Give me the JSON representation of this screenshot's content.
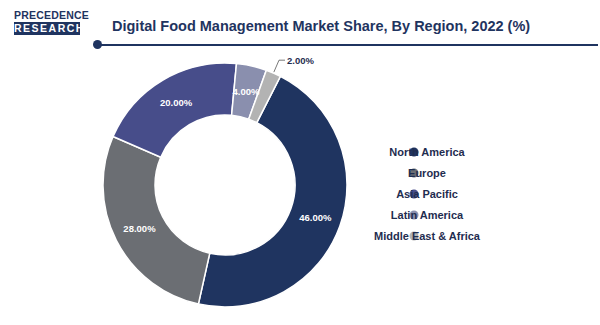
{
  "logo": [
    "PRECEDENCE",
    "RESEARCH"
  ],
  "chart_data": {
    "type": "pie",
    "title": "Digital Food Management Market Share, By Region, 2022 (%)",
    "categories": [
      "North America",
      "Europe",
      "Asia Pacific",
      "Latin America",
      "Middle East & Africa"
    ],
    "values": [
      46,
      28,
      20,
      4,
      2
    ],
    "value_labels": [
      "46.00%",
      "28.00%",
      "20.00%",
      "4.00%",
      "2.00%"
    ],
    "colors": [
      "#1f3460",
      "#6b6e73",
      "#474d8a",
      "#8a8fae",
      "#b3b3b3"
    ],
    "data_labels": true,
    "legend": "right"
  }
}
